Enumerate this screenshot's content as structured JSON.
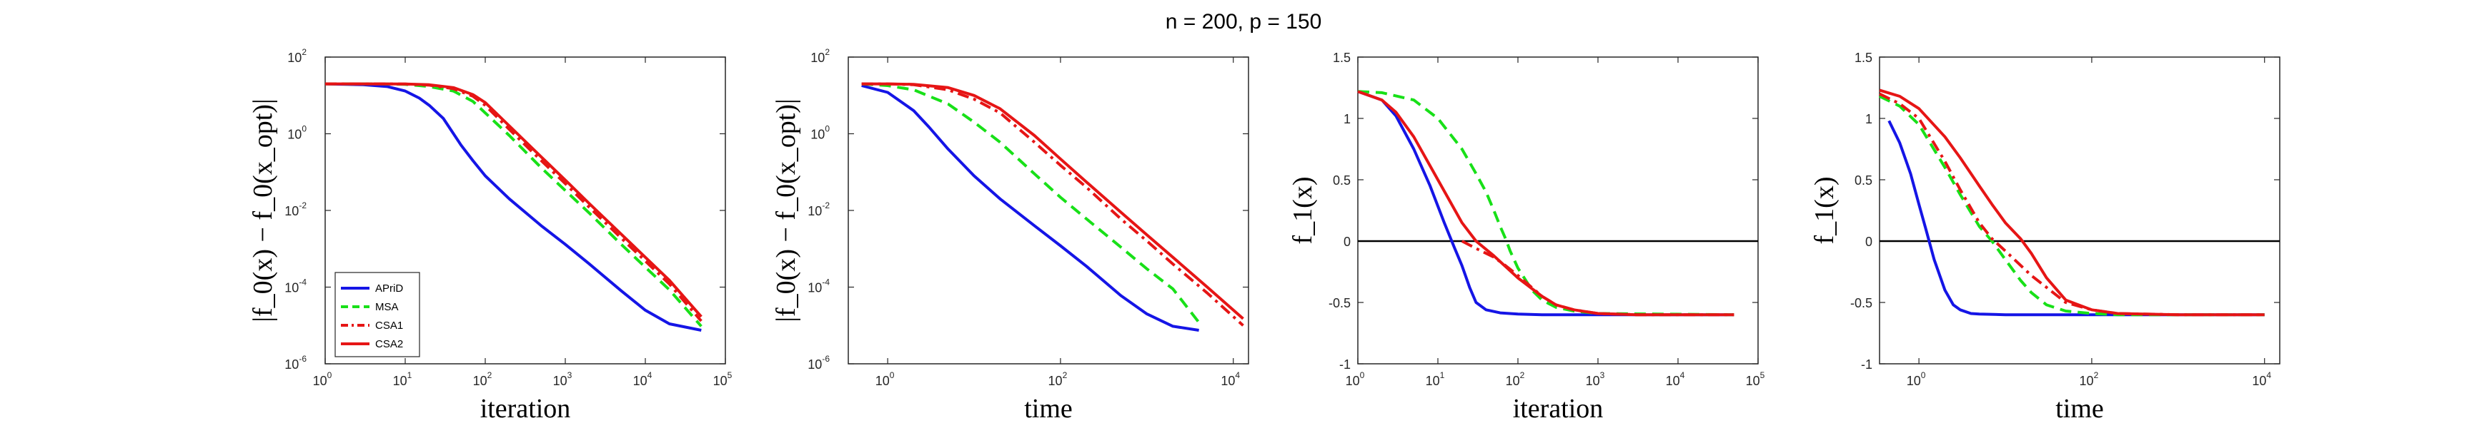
{
  "figure": {
    "title": "n = 200, p = 150"
  },
  "colors": {
    "APriD": "#1515e6",
    "MSA": "#18e018",
    "CSA1": "#e61515",
    "CSA2": "#e61515",
    "zero_line": "#000000"
  },
  "legend": {
    "placement": "bottom-left of first panel",
    "entries": [
      {
        "label": "APriD",
        "color": "#1515e6",
        "style": "solid"
      },
      {
        "label": "MSA",
        "color": "#18e018",
        "style": "dashed"
      },
      {
        "label": "CSA1",
        "color": "#e61515",
        "style": "dashdot"
      },
      {
        "label": "CSA2",
        "color": "#e61515",
        "style": "solid"
      }
    ]
  },
  "chart_data": [
    {
      "type": "line",
      "xlabel": "iteration",
      "ylabel": "|f_0(x) − f_0(x_opt)|",
      "xscale": "log",
      "yscale": "log",
      "xlim": [
        1,
        100000
      ],
      "ylim": [
        1e-06,
        100
      ],
      "xticks": [
        "0",
        "1",
        "2",
        "3",
        "4",
        "5"
      ],
      "yticks": [
        "-6",
        "-4",
        "-2",
        "0",
        "2"
      ],
      "tick_base": "10",
      "grid": false,
      "series": [
        {
          "name": "APriD",
          "style": "solid",
          "color": "#1515e6",
          "x": [
            1,
            3,
            6,
            10,
            15,
            20,
            30,
            50,
            70,
            100,
            200,
            500,
            1000,
            2000,
            5000,
            10000,
            20000,
            50000
          ],
          "y": [
            20,
            19,
            17,
            13,
            8.5,
            5.5,
            2.5,
            0.5,
            0.2,
            0.08,
            0.02,
            0.004,
            0.0013,
            0.0004,
            8e-05,
            2.5e-05,
            1.1e-05,
            7.5e-06
          ]
        },
        {
          "name": "MSA",
          "style": "dashed",
          "color": "#18e018",
          "x": [
            1,
            5,
            10,
            20,
            40,
            70,
            100,
            200,
            500,
            1000,
            2000,
            5000,
            10000,
            20000,
            50000
          ],
          "y": [
            20,
            20,
            19.5,
            17,
            13,
            7,
            3.5,
            0.9,
            0.13,
            0.033,
            0.0085,
            0.0013,
            0.00033,
            8.5e-05,
            9.5e-06
          ]
        },
        {
          "name": "CSA1",
          "style": "dashdot",
          "color": "#e61515",
          "x": [
            1,
            5,
            10,
            20,
            40,
            70,
            100,
            200,
            500,
            1000,
            2000,
            5000,
            10000,
            20000,
            50000
          ],
          "y": [
            20,
            20,
            19.8,
            18.5,
            15,
            9.5,
            5.5,
            1.3,
            0.2,
            0.05,
            0.012,
            0.0019,
            0.00048,
            0.00012,
            1.3e-05
          ]
        },
        {
          "name": "CSA2",
          "style": "solid",
          "color": "#e61515",
          "x": [
            1,
            5,
            10,
            20,
            40,
            70,
            100,
            200,
            500,
            1000,
            2000,
            5000,
            10000,
            20000,
            50000
          ],
          "y": [
            20,
            20,
            19.9,
            19,
            16,
            10.5,
            6.5,
            1.6,
            0.25,
            0.062,
            0.015,
            0.0024,
            0.0006,
            0.00015,
            1.7e-05
          ]
        }
      ]
    },
    {
      "type": "line",
      "xlabel": "time",
      "ylabel": "|f_0(x) − f_0(x_opt)|",
      "xscale": "log",
      "yscale": "log",
      "xlim": [
        0.35,
        15000
      ],
      "ylim": [
        1e-06,
        100
      ],
      "xticks": [
        "0",
        "2",
        "4"
      ],
      "yticks": [
        "-6",
        "-4",
        "-2",
        "0",
        "2"
      ],
      "tick_base": "10",
      "grid": false,
      "series": [
        {
          "name": "APriD",
          "style": "solid",
          "color": "#1515e6",
          "x": [
            0.5,
            1,
            2,
            3,
            5,
            10,
            20,
            50,
            100,
            200,
            500,
            1000,
            2000,
            4000
          ],
          "y": [
            18,
            12,
            4,
            1.5,
            0.4,
            0.08,
            0.02,
            0.004,
            0.0012,
            0.00035,
            6e-05,
            2e-05,
            9.5e-06,
            7.5e-06
          ]
        },
        {
          "name": "MSA",
          "style": "dashed",
          "color": "#18e018",
          "x": [
            0.5,
            1,
            2,
            5,
            10,
            20,
            50,
            100,
            200,
            500,
            1000,
            2000,
            4000
          ],
          "y": [
            20,
            18,
            14,
            6,
            2,
            0.6,
            0.09,
            0.022,
            0.006,
            0.0011,
            0.0003,
            9e-05,
            1.2e-05
          ]
        },
        {
          "name": "CSA1",
          "style": "dashdot",
          "color": "#e61515",
          "x": [
            0.5,
            1,
            2,
            5,
            10,
            20,
            50,
            100,
            200,
            500,
            1000,
            2000,
            5000,
            13000
          ],
          "y": [
            20,
            20,
            19,
            14,
            8,
            3.5,
            0.6,
            0.15,
            0.04,
            0.006,
            0.0016,
            0.0004,
            7e-05,
            1e-05
          ]
        },
        {
          "name": "CSA2",
          "style": "solid",
          "color": "#e61515",
          "x": [
            0.5,
            1,
            2,
            5,
            10,
            20,
            50,
            100,
            200,
            500,
            1000,
            2000,
            5000,
            13000
          ],
          "y": [
            20,
            20,
            19.5,
            16,
            10,
            4.5,
            0.9,
            0.22,
            0.055,
            0.009,
            0.0023,
            0.0006,
            0.0001,
            1.5e-05
          ]
        }
      ]
    },
    {
      "type": "line",
      "xlabel": "iteration",
      "ylabel": "f_1(x)",
      "xscale": "log",
      "yscale": "linear",
      "xlim": [
        1,
        100000
      ],
      "ylim": [
        -1,
        1.5
      ],
      "xticks": [
        "0",
        "1",
        "2",
        "3",
        "4",
        "5"
      ],
      "yticks": [
        "-1",
        "-0.5",
        "0",
        "0.5",
        "1",
        "1.5"
      ],
      "tick_base": "10",
      "zero_line": true,
      "grid": false,
      "series": [
        {
          "name": "APriD",
          "style": "solid",
          "color": "#1515e6",
          "x": [
            1,
            2,
            3,
            5,
            8,
            12,
            16,
            20,
            25,
            30,
            40,
            60,
            100,
            200,
            500,
            1000,
            5000,
            50000
          ],
          "y": [
            1.22,
            1.15,
            1.02,
            0.75,
            0.45,
            0.15,
            -0.05,
            -0.2,
            -0.38,
            -0.5,
            -0.56,
            -0.585,
            -0.595,
            -0.6,
            -0.6,
            -0.6,
            -0.6,
            -0.6
          ]
        },
        {
          "name": "MSA",
          "style": "dashed",
          "color": "#18e018",
          "x": [
            1,
            2,
            5,
            10,
            20,
            30,
            40,
            50,
            60,
            70,
            80,
            100,
            150,
            200,
            300,
            500,
            1000,
            50000
          ],
          "y": [
            1.22,
            1.21,
            1.15,
            1.0,
            0.75,
            0.55,
            0.4,
            0.25,
            0.12,
            0.02,
            -0.08,
            -0.22,
            -0.4,
            -0.48,
            -0.54,
            -0.57,
            -0.59,
            -0.6
          ]
        },
        {
          "name": "CSA1",
          "style": "dashdot",
          "color": "#e61515",
          "x": [
            20,
            30,
            50,
            70,
            100,
            200,
            300,
            500,
            1000,
            3000,
            50000
          ],
          "y": [
            0.0,
            -0.06,
            -0.13,
            -0.2,
            -0.28,
            -0.45,
            -0.52,
            -0.56,
            -0.59,
            -0.6,
            -0.6
          ]
        },
        {
          "name": "CSA2",
          "style": "solid",
          "color": "#e61515",
          "x": [
            1,
            2,
            3,
            5,
            10,
            20,
            30,
            50,
            100,
            200,
            300,
            500,
            1000,
            3000,
            50000
          ],
          "y": [
            1.22,
            1.15,
            1.05,
            0.85,
            0.5,
            0.15,
            0.0,
            -0.12,
            -0.3,
            -0.45,
            -0.52,
            -0.56,
            -0.59,
            -0.6,
            -0.6
          ]
        }
      ]
    },
    {
      "type": "line",
      "xlabel": "time",
      "ylabel": "f_1(x)",
      "xscale": "log",
      "yscale": "linear",
      "xlim": [
        0.35,
        15000
      ],
      "ylim": [
        -1,
        1.5
      ],
      "xticks": [
        "0",
        "2",
        "4"
      ],
      "yticks": [
        "-1",
        "-0.5",
        "0",
        "0.5",
        "1",
        "1.5"
      ],
      "tick_base": "10",
      "zero_line": true,
      "grid": false,
      "series": [
        {
          "name": "APriD",
          "style": "solid",
          "color": "#1515e6",
          "x": [
            0.45,
            0.6,
            0.8,
            1,
            1.2,
            1.5,
            2,
            2.5,
            3,
            4,
            5,
            10,
            100,
            10000
          ],
          "y": [
            0.98,
            0.8,
            0.55,
            0.3,
            0.1,
            -0.15,
            -0.4,
            -0.52,
            -0.56,
            -0.59,
            -0.595,
            -0.6,
            -0.6,
            -0.6
          ]
        },
        {
          "name": "MSA",
          "style": "dashed",
          "color": "#18e018",
          "x": [
            0.35,
            0.6,
            1,
            2,
            3,
            5,
            7,
            10,
            15,
            20,
            30,
            50,
            100,
            200,
            1000,
            10000
          ],
          "y": [
            1.18,
            1.1,
            0.95,
            0.6,
            0.38,
            0.12,
            0.0,
            -0.15,
            -0.32,
            -0.42,
            -0.52,
            -0.57,
            -0.59,
            -0.6,
            -0.6,
            -0.6
          ]
        },
        {
          "name": "CSA1",
          "style": "dashdot",
          "color": "#e61515",
          "x": [
            0.35,
            0.6,
            1,
            2,
            3,
            5,
            7,
            10,
            20,
            50,
            100,
            200,
            1000,
            10000
          ],
          "y": [
            1.2,
            1.12,
            1.0,
            0.65,
            0.42,
            0.15,
            0.02,
            -0.08,
            -0.28,
            -0.5,
            -0.56,
            -0.59,
            -0.6,
            -0.6
          ]
        },
        {
          "name": "CSA2",
          "style": "solid",
          "color": "#e61515",
          "x": [
            0.35,
            0.6,
            1,
            2,
            3,
            5,
            7,
            10,
            15,
            20,
            30,
            50,
            100,
            200,
            1000,
            10000
          ],
          "y": [
            1.23,
            1.18,
            1.08,
            0.85,
            0.68,
            0.45,
            0.3,
            0.15,
            0.02,
            -0.1,
            -0.3,
            -0.48,
            -0.56,
            -0.59,
            -0.6,
            -0.6
          ]
        }
      ]
    }
  ]
}
